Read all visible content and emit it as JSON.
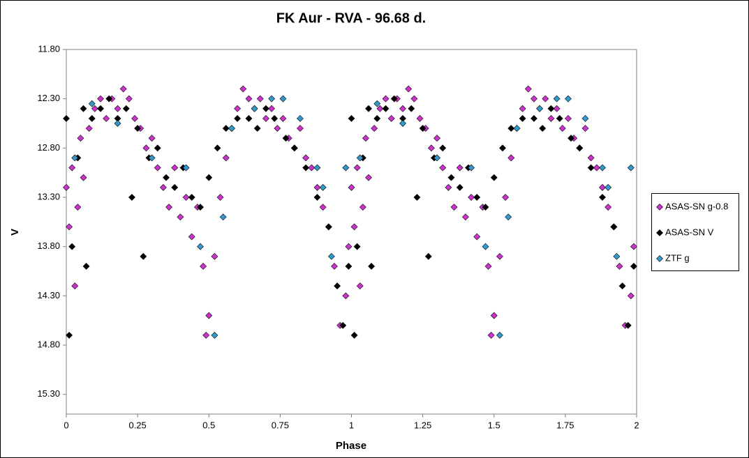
{
  "chart_data": {
    "type": "scatter",
    "title": "FK Aur - RVA - 96.68 d.",
    "x_label": "Phase",
    "y_label": "V",
    "xlim": [
      0,
      2
    ],
    "xticks": [
      0,
      0.25,
      0.5,
      0.75,
      1,
      1.25,
      1.5,
      1.75,
      2
    ],
    "ylim": [
      11.8,
      15.5
    ],
    "y_inverted": true,
    "yticks": [
      {
        "value": 11.8,
        "label": "11.80"
      },
      {
        "value": 12.3,
        "label": "12.30"
      },
      {
        "value": 12.8,
        "label": "12.80"
      },
      {
        "value": 13.3,
        "label": "13.30"
      },
      {
        "value": 13.8,
        "label": "13.80"
      },
      {
        "value": 14.3,
        "label": "14.30"
      },
      {
        "value": 14.8,
        "label": "14.80"
      },
      {
        "value": 15.3,
        "label": "15.30"
      }
    ],
    "legend": "right",
    "series": [
      {
        "name": "ASAS-SN g-0.8",
        "color": "#cc33cc",
        "x": [
          0,
          0.01,
          0.02,
          0.03,
          0.04,
          0.05,
          0.06,
          0.08,
          0.1,
          0.12,
          0.14,
          0.16,
          0.18,
          0.2,
          0.22,
          0.24,
          0.26,
          0.28,
          0.3,
          0.32,
          0.34,
          0.36,
          0.38,
          0.4,
          0.42,
          0.44,
          0.46,
          0.48,
          0.49,
          0.5,
          0.52,
          0.54,
          0.56,
          0.58,
          0.6,
          0.62,
          0.64,
          0.66,
          0.68,
          0.7,
          0.72,
          0.74,
          0.76,
          0.78,
          0.8,
          0.82,
          0.84,
          0.86,
          0.88,
          0.9,
          0.92,
          0.94,
          0.96,
          0.98,
          0.99,
          1,
          1.01,
          1.02,
          1.03,
          1.04,
          1.05,
          1.06,
          1.08,
          1.1,
          1.12,
          1.14,
          1.16,
          1.18,
          1.2,
          1.22,
          1.24,
          1.26,
          1.28,
          1.3,
          1.32,
          1.34,
          1.36,
          1.38,
          1.4,
          1.42,
          1.44,
          1.46,
          1.48,
          1.49,
          1.5,
          1.52,
          1.54,
          1.56,
          1.58,
          1.6,
          1.62,
          1.64,
          1.66,
          1.68,
          1.7,
          1.72,
          1.74,
          1.76,
          1.78,
          1.8,
          1.82,
          1.84,
          1.86,
          1.88,
          1.9,
          1.92,
          1.94,
          1.96,
          1.98,
          1.99
        ],
        "values": [
          13.2,
          13.6,
          13.0,
          14.2,
          13.4,
          12.7,
          13.1,
          12.6,
          12.4,
          12.3,
          12.5,
          12.3,
          12.4,
          12.2,
          12.3,
          12.5,
          12.6,
          12.8,
          12.7,
          13.0,
          13.2,
          13.4,
          13.0,
          13.5,
          13.3,
          13.7,
          13.4,
          14.0,
          14.7,
          14.5,
          13.9,
          13.3,
          12.9,
          12.6,
          12.4,
          12.2,
          12.3,
          12.4,
          12.3,
          12.5,
          12.4,
          12.6,
          12.5,
          12.7,
          12.8,
          12.6,
          12.9,
          13.0,
          13.2,
          13.4,
          13.6,
          14.0,
          14.6,
          14.3,
          13.8,
          13.2,
          13.6,
          13.0,
          14.2,
          13.4,
          12.7,
          13.1,
          12.6,
          12.4,
          12.3,
          12.5,
          12.3,
          12.4,
          12.2,
          12.3,
          12.5,
          12.6,
          12.8,
          12.7,
          13.0,
          13.2,
          13.4,
          13.0,
          13.5,
          13.3,
          13.7,
          13.4,
          14.0,
          14.7,
          14.5,
          13.9,
          13.3,
          12.9,
          12.6,
          12.4,
          12.2,
          12.3,
          12.4,
          12.3,
          12.5,
          12.4,
          12.6,
          12.5,
          12.7,
          12.8,
          12.6,
          12.9,
          13.0,
          13.2,
          13.4,
          13.6,
          14.0,
          14.6,
          14.3,
          13.8
        ]
      },
      {
        "name": "ASAS-SN V",
        "color": "#000000",
        "x": [
          0,
          0.01,
          0.02,
          0.04,
          0.06,
          0.07,
          0.09,
          0.12,
          0.15,
          0.18,
          0.21,
          0.23,
          0.25,
          0.27,
          0.29,
          0.32,
          0.35,
          0.38,
          0.41,
          0.44,
          0.47,
          0.5,
          0.53,
          0.56,
          0.6,
          0.64,
          0.67,
          0.7,
          0.73,
          0.77,
          0.8,
          0.84,
          0.88,
          0.92,
          0.95,
          0.97,
          0.99,
          1,
          1.01,
          1.02,
          1.04,
          1.06,
          1.07,
          1.09,
          1.12,
          1.15,
          1.18,
          1.21,
          1.23,
          1.25,
          1.27,
          1.29,
          1.32,
          1.35,
          1.38,
          1.41,
          1.44,
          1.47,
          1.5,
          1.53,
          1.56,
          1.6,
          1.64,
          1.67,
          1.7,
          1.73,
          1.77,
          1.8,
          1.84,
          1.88,
          1.92,
          1.95,
          1.97,
          1.99
        ],
        "values": [
          12.5,
          14.7,
          13.8,
          12.9,
          12.4,
          14.0,
          12.5,
          12.4,
          12.3,
          12.5,
          12.4,
          13.3,
          12.6,
          13.9,
          12.9,
          12.8,
          13.1,
          13.2,
          13.0,
          13.3,
          13.4,
          13.1,
          12.8,
          12.6,
          12.5,
          12.5,
          12.6,
          12.4,
          12.5,
          12.7,
          12.8,
          13.0,
          13.3,
          13.6,
          14.2,
          14.6,
          14.0,
          12.5,
          14.7,
          13.8,
          12.9,
          12.4,
          14.0,
          12.5,
          12.4,
          12.3,
          12.5,
          12.4,
          13.3,
          12.6,
          13.9,
          12.9,
          12.8,
          13.1,
          13.2,
          13.0,
          13.3,
          13.4,
          13.1,
          12.8,
          12.6,
          12.5,
          12.5,
          12.6,
          12.4,
          12.5,
          12.7,
          12.8,
          13.0,
          13.3,
          13.6,
          14.2,
          14.6,
          14.0
        ]
      },
      {
        "name": "ZTF g",
        "color": "#3399cc",
        "x": [
          0.03,
          0.09,
          0.18,
          0.3,
          0.42,
          0.47,
          0.52,
          0.55,
          0.58,
          0.66,
          0.72,
          0.76,
          0.82,
          0.88,
          0.9,
          0.93,
          0.98,
          1.03,
          1.09,
          1.18,
          1.3,
          1.42,
          1.47,
          1.52,
          1.55,
          1.58,
          1.66,
          1.72,
          1.76,
          1.82,
          1.88,
          1.9,
          1.93,
          1.98
        ],
        "values": [
          12.9,
          12.35,
          12.55,
          12.9,
          13.0,
          13.8,
          14.7,
          13.5,
          12.6,
          12.4,
          12.3,
          12.3,
          12.5,
          13.0,
          13.2,
          13.9,
          13.0,
          12.9,
          12.35,
          12.55,
          12.9,
          13.0,
          13.8,
          14.7,
          13.5,
          12.6,
          12.4,
          12.3,
          12.3,
          12.5,
          13.0,
          13.2,
          13.9,
          13.0
        ]
      }
    ]
  }
}
